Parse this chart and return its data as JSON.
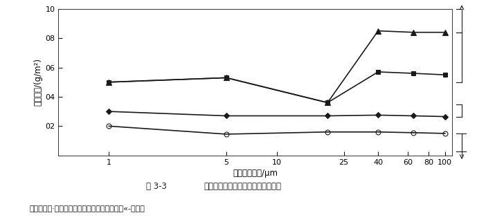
{
  "title_fig": "图 3-3",
  "title_desc": "不同类型车用空气过滤器适用的环境",
  "caption": "一旋风式；·一半湿式；。一干式（纤维式）！«-油浴式",
  "xlabel": "灰尘平均粒径/μm",
  "ylabel": "灰尘浓度/(g/m²)",
  "xticks": [
    1,
    5,
    10,
    25,
    40,
    60,
    80,
    100
  ],
  "xticklabels": [
    "1",
    "5",
    "10",
    "25",
    "40",
    "60",
    "80",
    "100"
  ],
  "xlim": [
    0.5,
    110
  ],
  "ylim": [
    0,
    1.0
  ],
  "yticks": [
    0.0,
    0.2,
    0.4,
    0.6,
    0.8,
    1.0
  ],
  "yticklabels": [
    "",
    "02",
    "04",
    "06",
    "08",
    "10"
  ],
  "series": [
    {
      "name": "旋风式",
      "x": [
        1,
        5,
        20,
        40,
        65,
        100
      ],
      "y": [
        0.5,
        0.53,
        0.36,
        0.85,
        0.84,
        0.84
      ],
      "marker": "^",
      "color": "#1a1a1a",
      "linewidth": 1.2,
      "markersize": 6,
      "fillstyle": "full"
    },
    {
      "name": "半湿式",
      "x": [
        1,
        5,
        20,
        40,
        65,
        100
      ],
      "y": [
        0.5,
        0.53,
        0.36,
        0.57,
        0.56,
        0.55
      ],
      "marker": "s",
      "color": "#1a1a1a",
      "linewidth": 1.2,
      "markersize": 5,
      "fillstyle": "full"
    },
    {
      "name": "干式（纤维式）",
      "x": [
        1,
        5,
        20,
        40,
        65,
        100
      ],
      "y": [
        0.3,
        0.27,
        0.27,
        0.275,
        0.27,
        0.265
      ],
      "marker": "D",
      "color": "#1a1a1a",
      "linewidth": 1.2,
      "markersize": 4,
      "fillstyle": "full"
    },
    {
      "name": "油浴式",
      "x": [
        1,
        5,
        20,
        40,
        65,
        100
      ],
      "y": [
        0.2,
        0.145,
        0.16,
        0.16,
        0.155,
        0.15
      ],
      "marker": "o",
      "color": "#1a1a1a",
      "linewidth": 1.2,
      "markersize": 5,
      "fillstyle": "none"
    }
  ],
  "background_color": "#ffffff",
  "text_color": "#1a1a1a",
  "bracket_color": "#1a1a1a",
  "brackets": [
    {
      "y_min": 0.84,
      "y_max": 1.0
    },
    {
      "y_min": 0.5,
      "y_max": 0.84
    },
    {
      "y_min": 0.265,
      "y_max": 0.35
    },
    {
      "y_min": 0.0,
      "y_max": 0.15
    }
  ]
}
